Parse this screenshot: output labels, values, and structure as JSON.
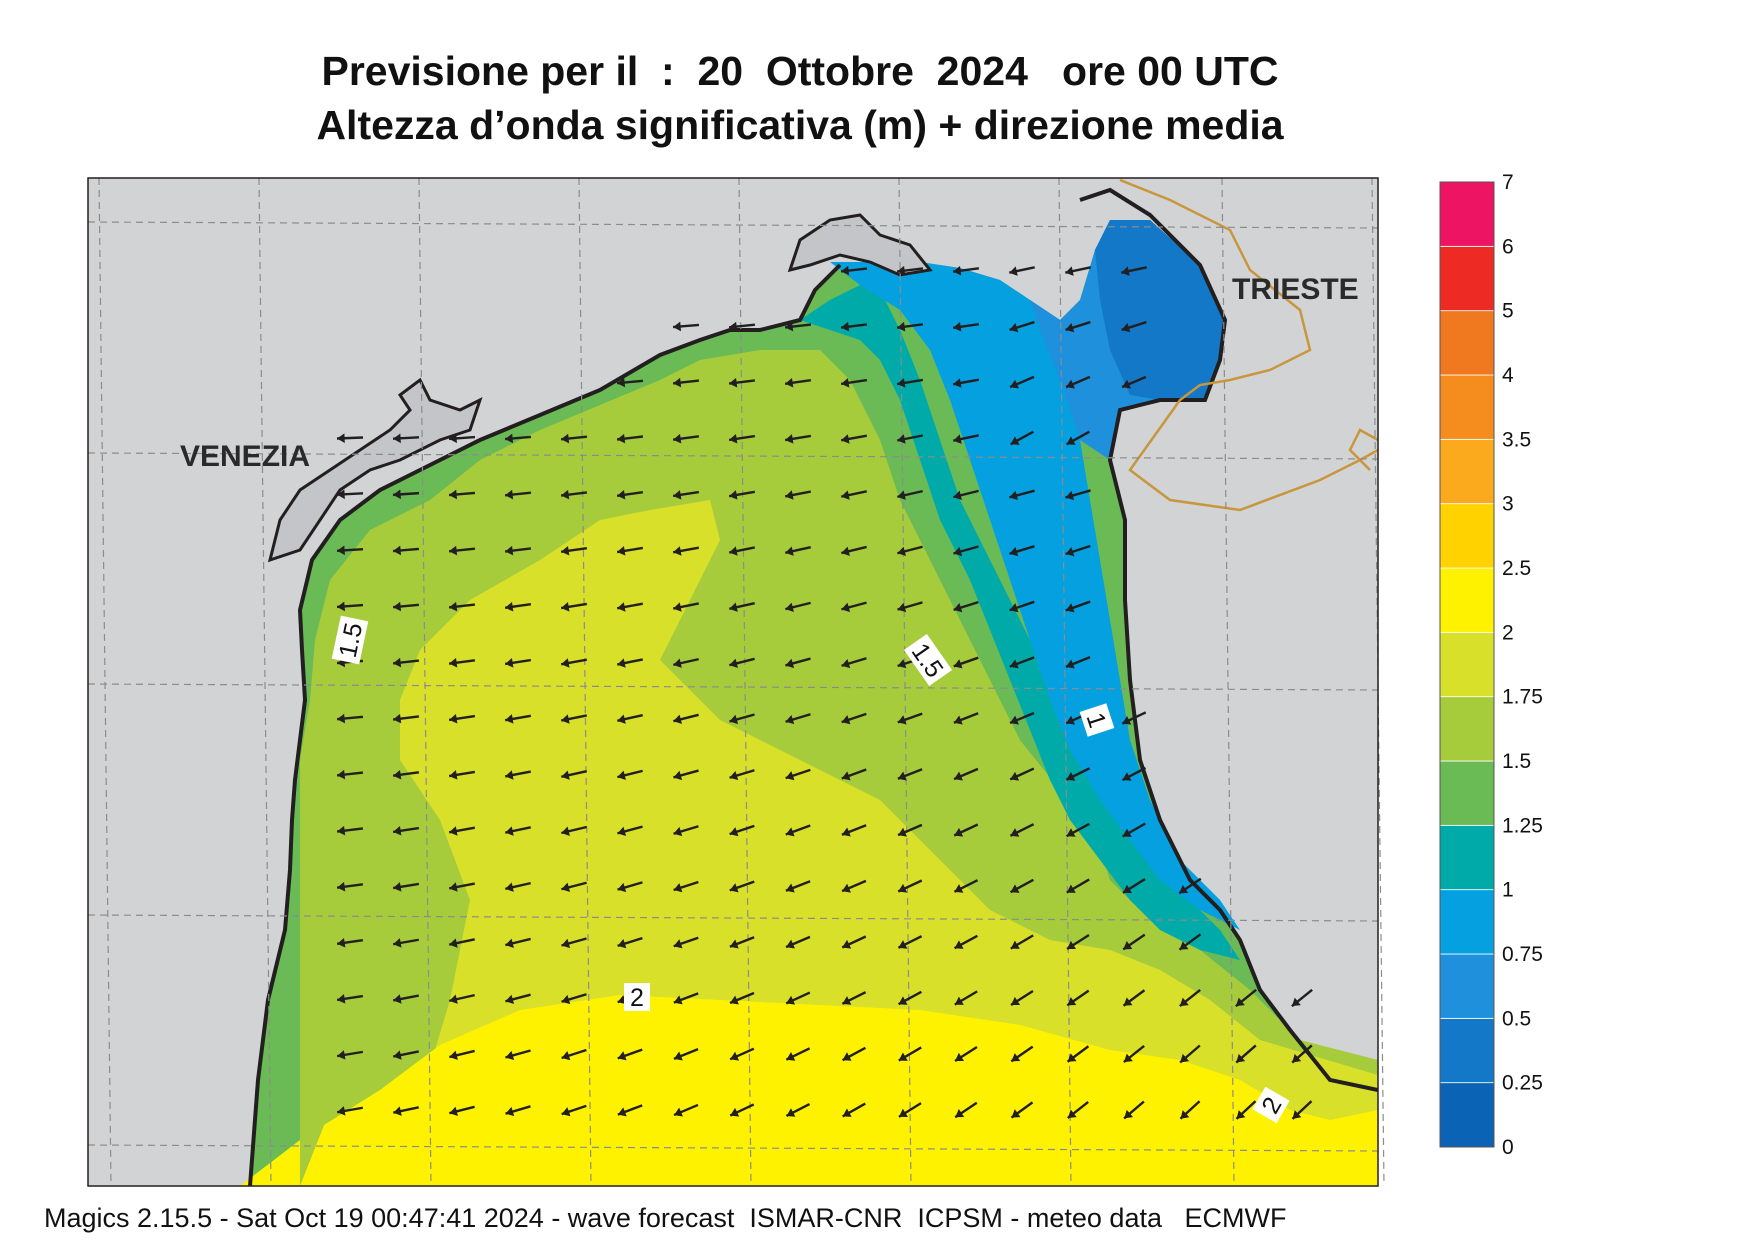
{
  "title": {
    "line1": "Previsione per il  :  20  Ottobre  2024   ore 00 UTC",
    "line2": "Altezza d’onda significativa (m) + direzione media"
  },
  "cities": [
    {
      "name": "VENEZIA"
    },
    {
      "name": "TRIESTE"
    }
  ],
  "contour_labels": [
    "1.5",
    "1.5",
    "1",
    "2",
    "2"
  ],
  "legend": {
    "levels": [
      "0",
      "0.25",
      "0.5",
      "0.75",
      "1",
      "1.25",
      "1.5",
      "1.75",
      "2",
      "2.5",
      "3",
      "3.5",
      "4",
      "5",
      "6",
      "7"
    ],
    "colors": [
      "#0a63b4",
      "#1478c8",
      "#1e90dc",
      "#05a0e0",
      "#00aaa8",
      "#6aba55",
      "#a6cc3c",
      "#d8e02a",
      "#fff200",
      "#ffd200",
      "#fbaa1e",
      "#f58c1e",
      "#f0781e",
      "#ee2a24",
      "#ee1464"
    ]
  },
  "colors": {
    "land": "#d2d3d5",
    "coast": "#231f20",
    "border": "#c8963c",
    "grid": "#8c8c8c",
    "arrow": "#231f20"
  },
  "footer": "Magics 2.15.5 - Sat Oct 19 00:47:41 2024 - wave forecast  ISMAR-CNR  ICPSM - meteo data   ECMWF"
}
